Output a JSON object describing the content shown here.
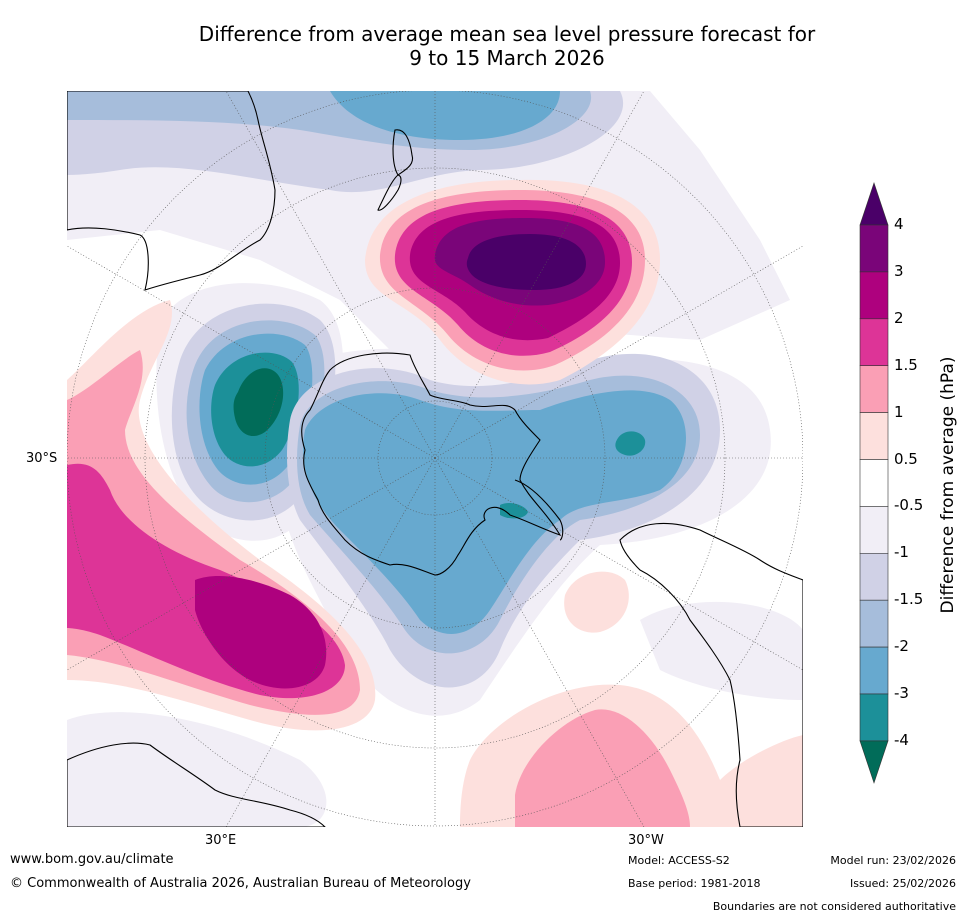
{
  "title": {
    "line1": "Difference from average mean sea level pressure forecast for",
    "line2": "9 to 15 March 2026"
  },
  "map": {
    "projection": "south polar stereographic",
    "labels": {
      "lat_30s": "30°S",
      "lon_30e": "30°E",
      "lon_30w": "30°W"
    },
    "anomalies": [
      {
        "name": "strong high south of New Zealand",
        "peak_hPa": 4
      },
      {
        "name": "high south-west of Australia / Indian Ocean",
        "peak_hPa": 3
      },
      {
        "name": "low west of Antarctica (Indian sector)",
        "peak_hPa": -4
      },
      {
        "name": "low over Antarctica",
        "peak_hPa": -2
      },
      {
        "name": "low over South Pacific / Amundsen Sea",
        "peak_hPa": -3
      },
      {
        "name": "high South Atlantic",
        "peak_hPa": 1.5
      }
    ]
  },
  "colorbar": {
    "title": "Difference from average (hPa)",
    "ticks": [
      "4",
      "3",
      "2",
      "1.5",
      "1",
      "0.5",
      "-0.5",
      "-1",
      "-1.5",
      "-2",
      "-3",
      "-4"
    ],
    "colors": [
      "#4a0068",
      "#7a0579",
      "#ae017e",
      "#dd3497",
      "#fa9fb5",
      "#fde0dd",
      "#ffffff",
      "#f1eef6",
      "#d0d1e6",
      "#a6bddb",
      "#67a9cf",
      "#1c9099",
      "#016c59"
    ],
    "palette": {
      "land": "#000000",
      "graticule": "#555555"
    }
  },
  "footer": {
    "website": "www.bom.gov.au/climate",
    "copyright": "© Commonwealth of Australia 2026, Australian Bureau of Meteorology",
    "model": "Model: ACCESS-S2",
    "base_period": "Base period: 1981-2018",
    "model_run": "Model run: 23/02/2026",
    "issued": "Issued: 25/02/2026",
    "disclaimer": "Boundaries are not considered authoritative"
  }
}
